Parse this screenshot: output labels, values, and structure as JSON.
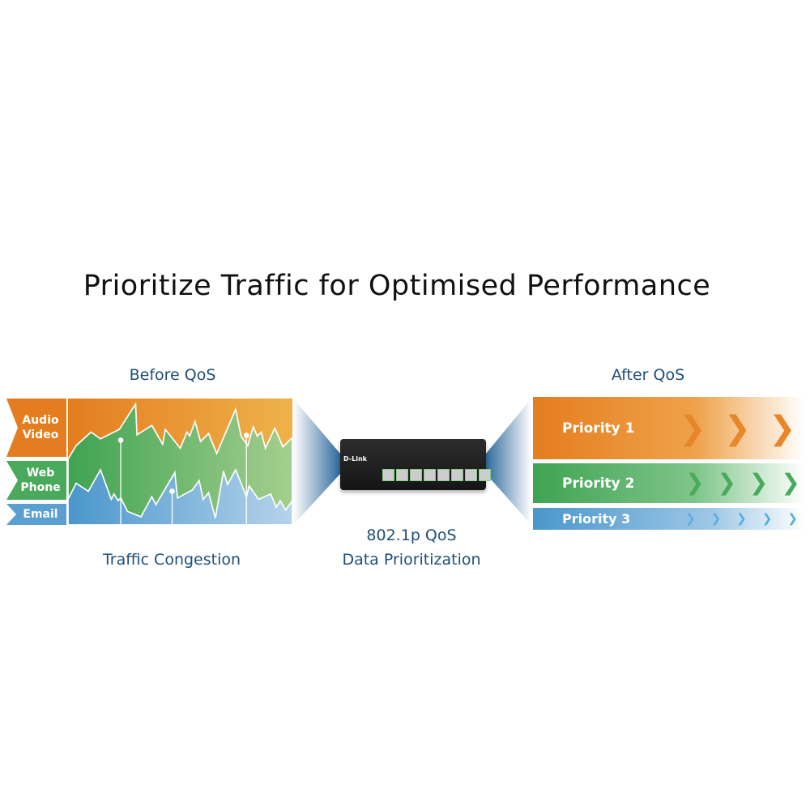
{
  "title": "Prioritize Traffic for Optimised Performance",
  "before": {
    "heading": "Before QoS",
    "caption": "Traffic Congestion",
    "labels": {
      "audio_video": [
        "Audio",
        "Video"
      ],
      "web_phone": [
        "Web",
        "Phone"
      ],
      "email": "Email"
    }
  },
  "center": {
    "line1": "802.1p QoS",
    "line2": "Data Prioritization",
    "switch_brand": "D-Link"
  },
  "after": {
    "heading": "After QoS",
    "priorities": [
      "Priority 1",
      "Priority 2",
      "Priority 3"
    ]
  },
  "colors": {
    "orange": "#e47d1f",
    "green": "#4aaa5c",
    "blue": "#5a9fd0",
    "text_blue": "#1f4e79"
  }
}
